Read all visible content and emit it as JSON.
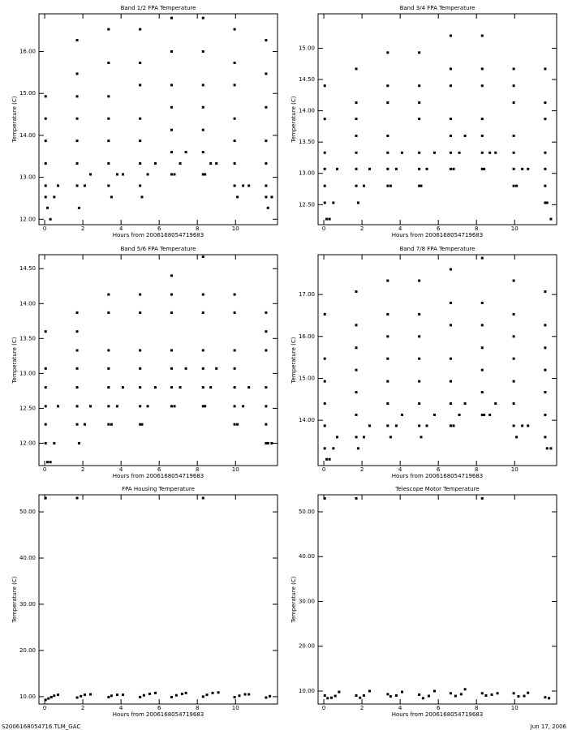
{
  "chart_data": [
    {
      "type": "scatter",
      "title": "Band 1/2 FPA Temperature",
      "xlabel": "Hours from 2006168054719683",
      "ylabel": "Temperature (C)",
      "color": "#000000",
      "xlim": [
        -0.3,
        12.2
      ],
      "ylim": [
        11.87,
        16.9
      ],
      "xticks": [
        0,
        2,
        4,
        6,
        8,
        10
      ],
      "yticks": [
        {
          "value": 12,
          "label": "12.00"
        },
        {
          "value": 13,
          "label": "13.00"
        },
        {
          "value": 14,
          "label": "14.00"
        },
        {
          "value": 15,
          "label": "15.00"
        },
        {
          "value": 16,
          "label": "16.00"
        }
      ],
      "x": [
        0.05,
        0.05,
        0.05,
        0.05,
        0.05,
        0.05,
        0.15,
        0.3,
        0.5,
        0.7,
        1.7,
        1.7,
        1.7,
        1.7,
        1.7,
        1.7,
        1.7,
        1.8,
        2.1,
        2.4,
        3.35,
        3.35,
        3.35,
        3.35,
        3.35,
        3.35,
        3.35,
        3.5,
        3.8,
        4.1,
        5.0,
        5.0,
        5.0,
        5.0,
        5.0,
        5.0,
        5.0,
        5.1,
        5.4,
        5.8,
        6.65,
        6.65,
        6.65,
        6.65,
        6.65,
        6.65,
        6.65,
        6.8,
        7.1,
        7.4,
        8.3,
        8.3,
        8.3,
        8.3,
        8.3,
        8.3,
        8.3,
        8.4,
        8.7,
        9.0,
        9.95,
        9.95,
        9.95,
        9.95,
        9.95,
        9.95,
        9.95,
        10.1,
        10.4,
        10.7,
        11.6,
        11.6,
        11.6,
        11.6,
        11.6,
        11.6,
        11.6,
        11.7,
        11.9
      ],
      "y": [
        12.53,
        12.8,
        13.33,
        13.87,
        14.4,
        14.93,
        12.27,
        12.0,
        12.53,
        12.8,
        12.8,
        13.33,
        13.87,
        14.4,
        14.93,
        15.47,
        16.27,
        12.27,
        12.8,
        13.07,
        12.8,
        13.33,
        13.87,
        14.4,
        14.93,
        15.73,
        16.53,
        12.53,
        13.07,
        13.07,
        12.8,
        13.33,
        13.87,
        14.4,
        15.2,
        15.73,
        16.53,
        12.53,
        13.07,
        13.33,
        13.07,
        13.6,
        14.13,
        14.67,
        15.2,
        16.0,
        16.8,
        13.07,
        13.33,
        13.6,
        13.07,
        13.6,
        14.13,
        14.67,
        15.2,
        16.0,
        16.8,
        13.07,
        13.33,
        13.33,
        12.8,
        13.33,
        13.87,
        14.4,
        15.2,
        15.73,
        16.53,
        12.53,
        12.8,
        12.8,
        12.53,
        12.8,
        13.33,
        13.87,
        14.67,
        15.47,
        16.27,
        12.27,
        12.53
      ]
    },
    {
      "type": "scatter",
      "title": "Band 3/4 FPA Temperature",
      "xlabel": "Hours from 2006168054719683",
      "ylabel": "Temperature (C)",
      "color": "#000000",
      "xlim": [
        -0.3,
        12.2
      ],
      "ylim": [
        12.18,
        15.55
      ],
      "xticks": [
        0,
        2,
        4,
        6,
        8,
        10
      ],
      "yticks": [
        {
          "value": 12.5,
          "label": "12.50"
        },
        {
          "value": 13,
          "label": "13.00"
        },
        {
          "value": 13.5,
          "label": "13.50"
        },
        {
          "value": 14,
          "label": "14.00"
        },
        {
          "value": 14.5,
          "label": "14.50"
        },
        {
          "value": 15,
          "label": "15.00"
        }
      ],
      "x": [
        0.05,
        0.05,
        0.05,
        0.05,
        0.05,
        0.05,
        0.15,
        0.3,
        0.5,
        0.7,
        1.7,
        1.7,
        1.7,
        1.7,
        1.7,
        1.7,
        1.7,
        1.8,
        2.1,
        2.4,
        3.35,
        3.35,
        3.35,
        3.35,
        3.35,
        3.35,
        3.35,
        3.5,
        3.8,
        4.1,
        5.0,
        5.0,
        5.0,
        5.0,
        5.0,
        5.0,
        5.0,
        5.1,
        5.4,
        5.8,
        6.65,
        6.65,
        6.65,
        6.65,
        6.65,
        6.65,
        6.65,
        6.8,
        7.1,
        7.4,
        8.3,
        8.3,
        8.3,
        8.3,
        8.3,
        8.3,
        8.3,
        8.4,
        8.7,
        9.0,
        9.95,
        9.95,
        9.95,
        9.95,
        9.95,
        9.95,
        9.95,
        10.1,
        10.4,
        10.7,
        11.6,
        11.6,
        11.6,
        11.6,
        11.6,
        11.6,
        11.6,
        11.7,
        11.9
      ],
      "y": [
        12.53,
        12.8,
        13.07,
        13.33,
        13.87,
        14.4,
        12.27,
        12.27,
        12.53,
        13.07,
        12.8,
        13.07,
        13.33,
        13.6,
        13.87,
        14.13,
        14.67,
        12.53,
        12.8,
        13.07,
        12.8,
        13.07,
        13.33,
        13.6,
        14.13,
        14.4,
        14.93,
        12.8,
        13.07,
        13.33,
        12.8,
        13.07,
        13.33,
        13.87,
        14.13,
        14.4,
        14.93,
        12.8,
        13.07,
        13.33,
        13.07,
        13.33,
        13.6,
        13.87,
        14.4,
        14.67,
        15.2,
        13.07,
        13.33,
        13.6,
        13.07,
        13.33,
        13.6,
        13.87,
        14.4,
        14.67,
        15.2,
        13.07,
        13.33,
        13.33,
        12.8,
        13.07,
        13.33,
        13.6,
        14.13,
        14.4,
        14.67,
        12.8,
        13.07,
        13.07,
        12.53,
        12.8,
        13.07,
        13.33,
        13.87,
        14.13,
        14.67,
        12.53,
        12.27
      ]
    },
    {
      "type": "scatter",
      "title": "Band 5/6 FPA Temperature",
      "xlabel": "Hours from 2006168054719683",
      "ylabel": "Temperature (C)",
      "color": "#000000",
      "xlim": [
        -0.3,
        12.2
      ],
      "ylim": [
        11.68,
        14.7
      ],
      "xticks": [
        0,
        2,
        4,
        6,
        8,
        10
      ],
      "yticks": [
        {
          "value": 12,
          "label": "12.00"
        },
        {
          "value": 12.5,
          "label": "12.50"
        },
        {
          "value": 13,
          "label": "13.00"
        },
        {
          "value": 13.5,
          "label": "13.50"
        },
        {
          "value": 14,
          "label": "14.00"
        },
        {
          "value": 14.5,
          "label": "14.50"
        }
      ],
      "x": [
        0.05,
        0.05,
        0.05,
        0.05,
        0.05,
        0.05,
        0.15,
        0.3,
        0.5,
        0.7,
        1.7,
        1.7,
        1.7,
        1.7,
        1.7,
        1.7,
        1.7,
        1.8,
        2.1,
        2.4,
        3.35,
        3.35,
        3.35,
        3.35,
        3.35,
        3.35,
        3.35,
        3.5,
        3.8,
        4.1,
        5.0,
        5.0,
        5.0,
        5.0,
        5.0,
        5.0,
        5.0,
        5.1,
        5.4,
        5.8,
        6.65,
        6.65,
        6.65,
        6.65,
        6.65,
        6.65,
        6.65,
        6.8,
        7.1,
        7.4,
        8.3,
        8.3,
        8.3,
        8.3,
        8.3,
        8.3,
        8.3,
        8.4,
        8.7,
        9.0,
        9.95,
        9.95,
        9.95,
        9.95,
        9.95,
        9.95,
        9.95,
        10.1,
        10.4,
        10.7,
        11.6,
        11.6,
        11.6,
        11.6,
        11.6,
        11.6,
        11.6,
        11.7,
        11.9
      ],
      "y": [
        12.0,
        12.27,
        12.53,
        12.8,
        13.07,
        13.6,
        11.73,
        11.73,
        12.0,
        12.53,
        12.27,
        12.53,
        12.8,
        13.07,
        13.33,
        13.6,
        13.87,
        12.0,
        12.27,
        12.53,
        12.27,
        12.53,
        12.8,
        13.07,
        13.33,
        13.87,
        14.13,
        12.27,
        12.53,
        12.8,
        12.27,
        12.53,
        12.8,
        13.07,
        13.33,
        13.87,
        14.13,
        12.27,
        12.53,
        12.8,
        12.53,
        12.8,
        13.07,
        13.33,
        13.87,
        14.13,
        14.4,
        12.53,
        12.8,
        13.07,
        12.53,
        12.8,
        13.07,
        13.33,
        13.87,
        14.13,
        14.67,
        12.53,
        12.8,
        13.07,
        12.27,
        12.53,
        12.8,
        13.07,
        13.33,
        13.87,
        14.13,
        12.27,
        12.53,
        12.8,
        12.0,
        12.27,
        12.53,
        12.8,
        13.33,
        13.6,
        13.87,
        12.0,
        12.0
      ]
    },
    {
      "type": "scatter",
      "title": "Band 7/8 FPA Temperature",
      "xlabel": "Hours from 2006168054719683",
      "ylabel": "Temperature (C)",
      "color": "#000000",
      "xlim": [
        -0.3,
        12.2
      ],
      "ylim": [
        12.92,
        17.95
      ],
      "xticks": [
        0,
        2,
        4,
        6,
        8,
        10
      ],
      "yticks": [
        {
          "value": 14,
          "label": "14.00"
        },
        {
          "value": 15,
          "label": "15.00"
        },
        {
          "value": 16,
          "label": "16.00"
        },
        {
          "value": 17,
          "label": "17.00"
        }
      ],
      "x": [
        0.05,
        0.05,
        0.05,
        0.05,
        0.05,
        0.05,
        0.15,
        0.3,
        0.5,
        0.7,
        1.7,
        1.7,
        1.7,
        1.7,
        1.7,
        1.7,
        1.7,
        1.8,
        2.1,
        2.4,
        3.35,
        3.35,
        3.35,
        3.35,
        3.35,
        3.35,
        3.35,
        3.5,
        3.8,
        4.1,
        5.0,
        5.0,
        5.0,
        5.0,
        5.0,
        5.0,
        5.0,
        5.1,
        5.4,
        5.8,
        6.65,
        6.65,
        6.65,
        6.65,
        6.65,
        6.65,
        6.65,
        6.8,
        7.1,
        7.4,
        8.3,
        8.3,
        8.3,
        8.3,
        8.3,
        8.3,
        8.3,
        8.4,
        8.7,
        9.0,
        9.95,
        9.95,
        9.95,
        9.95,
        9.95,
        9.95,
        9.95,
        10.1,
        10.4,
        10.7,
        11.6,
        11.6,
        11.6,
        11.6,
        11.6,
        11.6,
        11.6,
        11.7,
        11.9
      ],
      "y": [
        13.33,
        13.87,
        14.4,
        14.93,
        15.47,
        16.53,
        13.07,
        13.07,
        13.33,
        13.6,
        13.6,
        14.13,
        14.67,
        15.2,
        15.73,
        16.27,
        17.07,
        13.33,
        13.6,
        13.87,
        13.87,
        14.4,
        14.93,
        15.47,
        16.0,
        16.53,
        17.33,
        13.6,
        13.87,
        14.13,
        13.87,
        14.4,
        14.93,
        15.47,
        16.0,
        16.53,
        17.33,
        13.6,
        13.87,
        14.13,
        13.87,
        14.4,
        14.93,
        15.47,
        16.27,
        16.8,
        17.6,
        13.87,
        14.13,
        14.4,
        14.13,
        14.67,
        15.2,
        15.73,
        16.27,
        16.8,
        17.87,
        14.13,
        14.13,
        14.4,
        13.87,
        14.4,
        14.93,
        15.47,
        16.0,
        16.53,
        17.33,
        13.6,
        13.87,
        13.87,
        13.6,
        14.13,
        14.67,
        15.2,
        15.73,
        16.27,
        17.07,
        13.33,
        13.33
      ]
    },
    {
      "type": "scatter",
      "title": "FPA Housing Temperature",
      "xlabel": "Hours from 2006168054719683",
      "ylabel": "Temperature (C)",
      "color": "#000000",
      "xlim": [
        -0.3,
        12.2
      ],
      "ylim": [
        8.4,
        53.7
      ],
      "xticks": [
        0,
        2,
        4,
        6,
        8,
        10
      ],
      "yticks": [
        {
          "value": 10,
          "label": "10.00"
        },
        {
          "value": 20,
          "label": "20.00"
        },
        {
          "value": 30,
          "label": "30.00"
        },
        {
          "value": 40,
          "label": "40.00"
        },
        {
          "value": 50,
          "label": "50.00"
        }
      ],
      "x": [
        0.05,
        0.05,
        0.2,
        0.35,
        0.5,
        0.7,
        1.7,
        1.7,
        1.9,
        2.1,
        2.4,
        3.35,
        3.5,
        3.8,
        4.1,
        5.0,
        5.2,
        5.5,
        5.8,
        6.65,
        6.9,
        7.2,
        7.4,
        8.3,
        8.3,
        8.5,
        8.8,
        9.1,
        9.95,
        10.2,
        10.5,
        10.7,
        11.6,
        11.8
      ],
      "y": [
        53,
        9.3,
        9.6,
        9.9,
        10.2,
        10.4,
        53,
        9.8,
        10.1,
        10.4,
        10.5,
        9.9,
        10.2,
        10.4,
        10.4,
        9.9,
        10.3,
        10.6,
        10.8,
        9.9,
        10.3,
        10.6,
        10.8,
        53,
        10.0,
        10.4,
        10.8,
        10.9,
        9.9,
        10.2,
        10.5,
        10.5,
        9.8,
        10.1
      ]
    },
    {
      "type": "scatter",
      "title": "Telescope Motor Temperature",
      "xlabel": "Hours from 2006168054719683",
      "ylabel": "Temperature (C)",
      "color": "#000000",
      "xlim": [
        -0.3,
        12.2
      ],
      "ylim": [
        7.1,
        53.8
      ],
      "xticks": [
        0,
        2,
        4,
        6,
        8,
        10
      ],
      "yticks": [
        {
          "value": 10,
          "label": "10.00"
        },
        {
          "value": 20,
          "label": "20.00"
        },
        {
          "value": 30,
          "label": "30.00"
        },
        {
          "value": 40,
          "label": "40.00"
        },
        {
          "value": 50,
          "label": "50.00"
        }
      ],
      "x": [
        0.05,
        0.05,
        0.2,
        0.4,
        0.6,
        0.8,
        1.7,
        1.7,
        1.9,
        2.1,
        2.4,
        3.35,
        3.5,
        3.8,
        4.1,
        5.0,
        5.2,
        5.5,
        5.8,
        6.65,
        6.9,
        7.2,
        7.4,
        8.3,
        8.3,
        8.5,
        8.8,
        9.1,
        9.95,
        10.2,
        10.5,
        10.7,
        11.6,
        11.8
      ],
      "y": [
        53,
        9.0,
        8.4,
        8.5,
        8.9,
        9.8,
        53,
        9.0,
        8.5,
        9.0,
        10.0,
        9.3,
        8.8,
        9.0,
        9.8,
        9.2,
        8.4,
        8.9,
        10.0,
        9.5,
        8.9,
        9.3,
        10.4,
        53,
        9.5,
        9.0,
        9.2,
        9.5,
        9.5,
        8.8,
        8.9,
        9.6,
        8.6,
        8.4
      ]
    }
  ],
  "footer": {
    "left": "S2006168054716.TLM_GAC",
    "right": "Jun 17, 2006"
  }
}
